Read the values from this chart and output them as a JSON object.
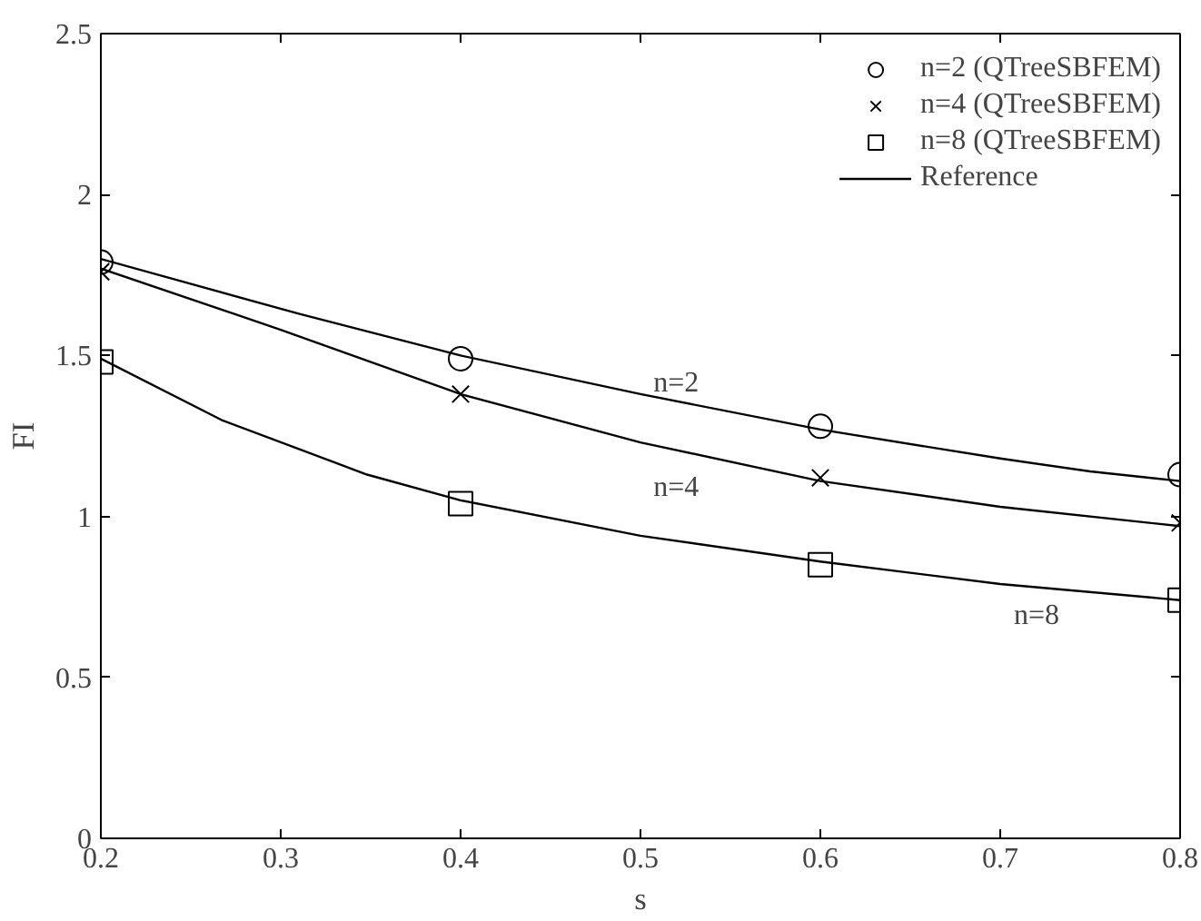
{
  "chart_data": {
    "type": "scatter",
    "xlabel": "s",
    "ylabel": "FI",
    "xlim": [
      0.2,
      0.8
    ],
    "ylim": [
      0,
      2.5
    ],
    "xticks": [
      0.2,
      0.3,
      0.4,
      0.5,
      0.6,
      0.7,
      0.8
    ],
    "yticks": [
      0,
      0.5,
      1,
      1.5,
      2,
      2.5
    ],
    "grid": false,
    "legend": "top right",
    "series": [
      {
        "name": "n=2 (QTreeSBFEM)",
        "marker": "circle",
        "color": "#000000",
        "x": [
          0.2,
          0.4,
          0.6,
          0.8
        ],
        "values": [
          1.79,
          1.49,
          1.28,
          1.13
        ]
      },
      {
        "name": "n=4 (QTreeSBFEM)",
        "marker": "cross",
        "color": "#000000",
        "x": [
          0.2,
          0.4,
          0.6,
          0.8
        ],
        "values": [
          1.76,
          1.38,
          1.12,
          0.98
        ]
      },
      {
        "name": "n=8 (QTreeSBFEM)",
        "marker": "square",
        "color": "#000000",
        "x": [
          0.2,
          0.4,
          0.6,
          0.8
        ],
        "values": [
          1.48,
          1.04,
          0.85,
          0.74
        ]
      },
      {
        "name": "Reference",
        "type": "line",
        "line_style": "solid",
        "color": "#000000",
        "x": [
          0.2,
          0.31,
          0.4,
          0.5,
          0.6,
          0.7,
          0.75,
          0.8
        ],
        "values": [
          1.8,
          1.63,
          1.5,
          1.38,
          1.27,
          1.18,
          1.14,
          1.11
        ]
      },
      {
        "type": "line",
        "line_style": "solid",
        "color": "#000000",
        "x": [
          0.2,
          0.3,
          0.4,
          0.5,
          0.6,
          0.7,
          0.8
        ],
        "values": [
          1.77,
          1.58,
          1.38,
          1.23,
          1.11,
          1.03,
          0.97
        ]
      },
      {
        "type": "line",
        "line_style": "solid",
        "color": "#000000",
        "x": [
          0.2,
          0.267,
          0.348,
          0.4,
          0.5,
          0.6,
          0.7,
          0.8
        ],
        "values": [
          1.49,
          1.3,
          1.13,
          1.05,
          0.94,
          0.86,
          0.79,
          0.74
        ]
      }
    ],
    "annotations": [
      "n=2",
      "n=4",
      "n=8"
    ]
  }
}
